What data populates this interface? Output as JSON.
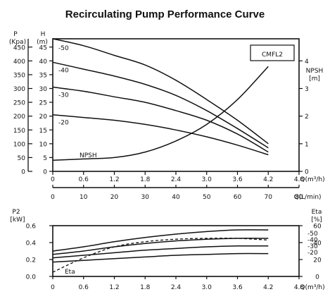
{
  "title": "Recirculating Pump Performance Curve",
  "chart_data": [
    {
      "type": "line",
      "model_label": "CMFL2",
      "left_axis_1": {
        "label": "P",
        "unit": "(Kpa)",
        "ticks": [
          "0",
          "50",
          "100",
          "150",
          "200",
          "250",
          "300",
          "350",
          "400",
          "450"
        ]
      },
      "left_axis_2": {
        "label": "H",
        "unit": "(m)",
        "ticks": [
          "0",
          "5",
          "10",
          "15",
          "20",
          "25",
          "30",
          "35",
          "40",
          "45"
        ]
      },
      "right_axis": {
        "label": "NPSH",
        "unit": "[m]",
        "ticks": [
          "0",
          "1",
          "2",
          "3",
          "4"
        ]
      },
      "x_axis_1": {
        "label": "Q(m³/h)",
        "ticks": [
          "0",
          "0.6",
          "1.2",
          "1.8",
          "2.4",
          "3.0",
          "3.6",
          "4.2",
          "4.8"
        ]
      },
      "x_axis_2": {
        "label": "Q(L/min)",
        "ticks": [
          "0",
          "10",
          "20",
          "30",
          "40",
          "50",
          "60",
          "70",
          "80"
        ]
      },
      "xlim": [
        0,
        4.8
      ],
      "ylim": [
        0,
        48
      ],
      "npsh_lim": [
        0,
        4.8
      ],
      "grid": false,
      "series": [
        {
          "name": "-50",
          "x": [
            0,
            0.6,
            1.2,
            1.8,
            2.4,
            3.0,
            3.6,
            4.2
          ],
          "y": [
            48,
            45.5,
            42,
            38.5,
            33,
            26,
            18.5,
            10
          ]
        },
        {
          "name": "-40",
          "x": [
            0,
            0.6,
            1.2,
            1.8,
            2.4,
            3.0,
            3.6,
            4.2
          ],
          "y": [
            39.5,
            37,
            34.5,
            31.5,
            27.5,
            22,
            15.5,
            8.5
          ]
        },
        {
          "name": "-30",
          "x": [
            0,
            0.6,
            1.2,
            1.8,
            2.4,
            3.0,
            3.6,
            4.2
          ],
          "y": [
            30.5,
            29,
            27,
            25,
            22,
            18.5,
            13.5,
            7
          ]
        },
        {
          "name": "-20",
          "x": [
            0,
            0.6,
            1.2,
            1.8,
            2.4,
            3.0,
            3.6,
            4.2
          ],
          "y": [
            20.5,
            19.5,
            18.5,
            17,
            15,
            12.5,
            9.5,
            6
          ]
        }
      ],
      "npsh_curve": {
        "name": "NPSH",
        "x": [
          0,
          0.6,
          1.2,
          1.8,
          2.4,
          3.0,
          3.6,
          4.2
        ],
        "y": [
          0.4,
          0.45,
          0.5,
          0.7,
          1.1,
          1.7,
          2.6,
          3.8
        ]
      }
    },
    {
      "type": "line",
      "left_axis": {
        "label": "P2",
        "unit": "[kW]",
        "ticks": [
          "0.0",
          "0.2",
          "0.4",
          "0.6"
        ]
      },
      "right_axis": {
        "label": "Eta",
        "unit": "[%]",
        "ticks": [
          "0",
          "20",
          "40",
          "60"
        ]
      },
      "x_axis": {
        "label": "Q(m³/h)",
        "ticks": [
          "0",
          "0.6",
          "1.2",
          "1.8",
          "2.4",
          "3.0",
          "3.6",
          "4.2",
          "4.8"
        ]
      },
      "xlim": [
        0,
        4.8
      ],
      "ylim": [
        0,
        0.6
      ],
      "eta_lim": [
        0,
        60
      ],
      "grid": false,
      "series": [
        {
          "name": "-50",
          "x": [
            0,
            0.6,
            1.2,
            1.8,
            2.4,
            3.0,
            3.6,
            4.2
          ],
          "y": [
            0.3,
            0.35,
            0.41,
            0.46,
            0.5,
            0.53,
            0.55,
            0.55
          ]
        },
        {
          "name": "-40",
          "x": [
            0,
            0.6,
            1.2,
            1.8,
            2.4,
            3.0,
            3.6,
            4.2
          ],
          "y": [
            0.26,
            0.3,
            0.35,
            0.39,
            0.42,
            0.44,
            0.45,
            0.45
          ]
        },
        {
          "name": "-30",
          "x": [
            0,
            0.6,
            1.2,
            1.8,
            2.4,
            3.0,
            3.6,
            4.2
          ],
          "y": [
            0.22,
            0.25,
            0.28,
            0.31,
            0.33,
            0.35,
            0.36,
            0.36
          ]
        },
        {
          "name": "-20",
          "x": [
            0,
            0.6,
            1.2,
            1.8,
            2.4,
            3.0,
            3.6,
            4.2
          ],
          "y": [
            0.17,
            0.19,
            0.21,
            0.23,
            0.25,
            0.26,
            0.27,
            0.27
          ]
        }
      ],
      "eta_curve": {
        "name": "Eta",
        "x": [
          0,
          0.6,
          1.2,
          1.8,
          2.4,
          3.0,
          3.6,
          4.2
        ],
        "y": [
          5,
          22,
          35,
          41,
          44,
          45,
          45,
          43
        ]
      }
    }
  ]
}
